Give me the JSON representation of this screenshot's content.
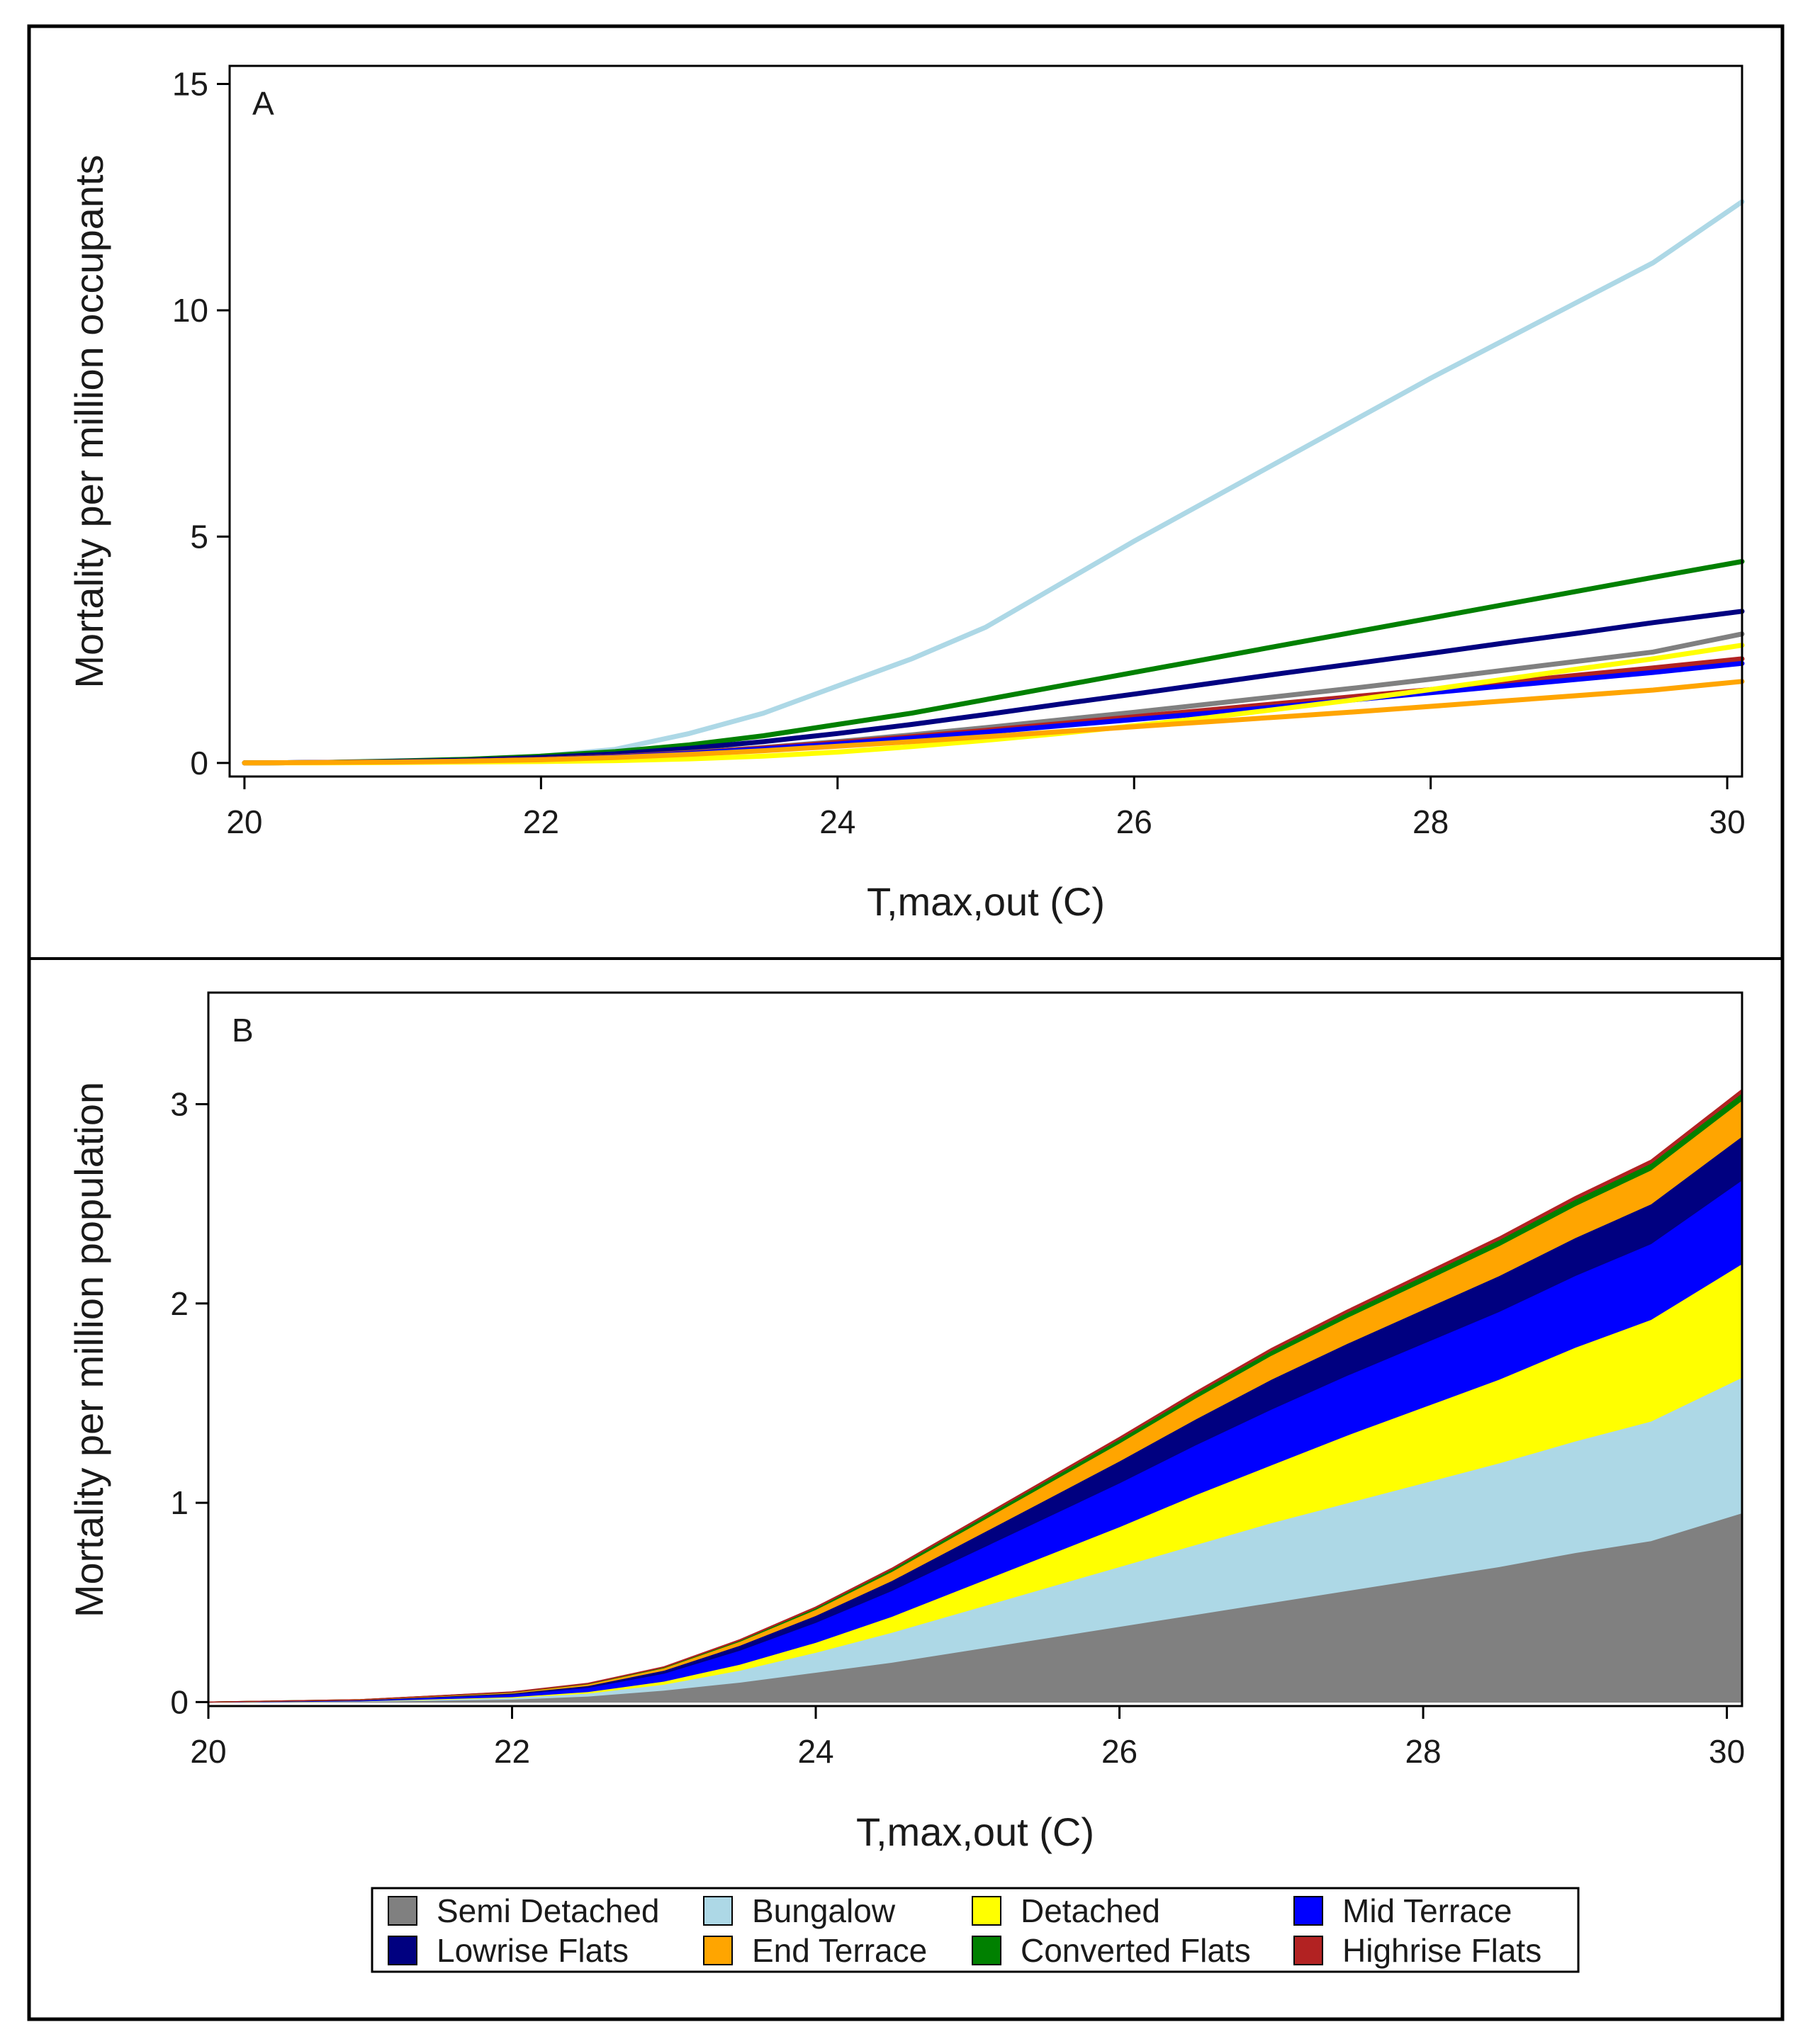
{
  "chart_data": [
    {
      "panel": "A",
      "type": "line",
      "title": "",
      "xlabel": "T,max,out (C)",
      "ylabel": "Mortality per million occupants",
      "xlim": [
        19.9,
        30.1
      ],
      "ylim": [
        -0.3,
        15.4
      ],
      "xticks": [
        20,
        22,
        24,
        26,
        28,
        30
      ],
      "yticks": [
        0,
        5,
        10,
        15
      ],
      "x": [
        20,
        20.5,
        21,
        21.5,
        22,
        22.5,
        23,
        23.5,
        24,
        24.5,
        25,
        25.5,
        26,
        26.5,
        27,
        27.5,
        28,
        28.5,
        29,
        29.5,
        30.1
      ],
      "series": [
        {
          "name": "Bungalow",
          "color": "#add8e6",
          "values": [
            0,
            0.01,
            0.03,
            0.08,
            0.15,
            0.3,
            0.65,
            1.1,
            1.7,
            2.3,
            3.0,
            3.95,
            4.9,
            5.8,
            6.7,
            7.6,
            8.5,
            9.35,
            10.2,
            11.05,
            12.4
          ]
        },
        {
          "name": "Converted Flats",
          "color": "#008000",
          "values": [
            0,
            0.01,
            0.04,
            0.08,
            0.15,
            0.25,
            0.4,
            0.6,
            0.85,
            1.1,
            1.4,
            1.7,
            2.0,
            2.3,
            2.6,
            2.9,
            3.2,
            3.5,
            3.8,
            4.1,
            4.45
          ]
        },
        {
          "name": "Lowrise Flats",
          "color": "#000080",
          "values": [
            0,
            0.01,
            0.03,
            0.06,
            0.12,
            0.2,
            0.32,
            0.47,
            0.65,
            0.85,
            1.07,
            1.3,
            1.52,
            1.75,
            1.98,
            2.2,
            2.42,
            2.65,
            2.87,
            3.1,
            3.35
          ]
        },
        {
          "name": "Semi Detached",
          "color": "#808080",
          "values": [
            0,
            0.01,
            0.02,
            0.04,
            0.08,
            0.14,
            0.23,
            0.34,
            0.47,
            0.62,
            0.78,
            0.95,
            1.12,
            1.3,
            1.48,
            1.66,
            1.85,
            2.05,
            2.25,
            2.45,
            2.85
          ]
        },
        {
          "name": "Highrise Flats",
          "color": "#b22222",
          "values": [
            0,
            0.01,
            0.02,
            0.04,
            0.08,
            0.14,
            0.22,
            0.33,
            0.45,
            0.58,
            0.72,
            0.87,
            1.02,
            1.17,
            1.32,
            1.47,
            1.62,
            1.78,
            1.94,
            2.1,
            2.3
          ]
        },
        {
          "name": "Mid Terrace",
          "color": "#0000ff",
          "values": [
            0,
            0.01,
            0.02,
            0.04,
            0.07,
            0.13,
            0.21,
            0.31,
            0.42,
            0.55,
            0.68,
            0.82,
            0.96,
            1.1,
            1.25,
            1.4,
            1.55,
            1.7,
            1.85,
            2.0,
            2.2
          ]
        },
        {
          "name": "Detached",
          "color": "#ffff00",
          "values": [
            0,
            0,
            0.01,
            0.02,
            0.03,
            0.05,
            0.09,
            0.15,
            0.24,
            0.36,
            0.5,
            0.65,
            0.82,
            1.0,
            1.2,
            1.4,
            1.62,
            1.85,
            2.08,
            2.3,
            2.6
          ]
        },
        {
          "name": "End Terrace",
          "color": "#ffa500",
          "values": [
            0,
            0.01,
            0.02,
            0.04,
            0.07,
            0.12,
            0.19,
            0.27,
            0.37,
            0.47,
            0.58,
            0.69,
            0.8,
            0.91,
            1.02,
            1.13,
            1.25,
            1.37,
            1.49,
            1.61,
            1.8
          ]
        }
      ]
    },
    {
      "panel": "B",
      "type": "area",
      "stacked": true,
      "title": "",
      "xlabel": "T,max,out (C)",
      "ylabel": "Mortality per million population",
      "xlim": [
        20,
        30.1
      ],
      "ylim": [
        -0.02,
        3.56
      ],
      "xticks": [
        20,
        22,
        24,
        26,
        28,
        30
      ],
      "yticks": [
        0,
        1,
        2,
        3
      ],
      "x": [
        20,
        21,
        22,
        22.5,
        23,
        23.5,
        24,
        24.5,
        25,
        25.5,
        26,
        26.5,
        27,
        27.5,
        28,
        28.5,
        29,
        29.5,
        30.1
      ],
      "series": [
        {
          "name": "Semi Detached",
          "color": "#808080",
          "values": [
            0,
            0.003,
            0.015,
            0.03,
            0.06,
            0.1,
            0.15,
            0.2,
            0.26,
            0.32,
            0.38,
            0.44,
            0.5,
            0.56,
            0.62,
            0.68,
            0.75,
            0.81,
            0.95
          ]
        },
        {
          "name": "Bungalow",
          "color": "#add8e6",
          "values": [
            0,
            0.002,
            0.008,
            0.015,
            0.03,
            0.06,
            0.1,
            0.15,
            0.2,
            0.25,
            0.3,
            0.35,
            0.4,
            0.44,
            0.48,
            0.52,
            0.56,
            0.6,
            0.68
          ]
        },
        {
          "name": "Detached",
          "color": "#ffff00",
          "values": [
            0,
            0.001,
            0.004,
            0.008,
            0.015,
            0.03,
            0.05,
            0.08,
            0.12,
            0.16,
            0.2,
            0.25,
            0.29,
            0.34,
            0.38,
            0.42,
            0.47,
            0.51,
            0.57
          ]
        },
        {
          "name": "Mid Terrace",
          "color": "#0000ff",
          "values": [
            0,
            0.003,
            0.012,
            0.02,
            0.04,
            0.07,
            0.1,
            0.13,
            0.16,
            0.19,
            0.22,
            0.25,
            0.28,
            0.3,
            0.32,
            0.34,
            0.36,
            0.38,
            0.42
          ]
        },
        {
          "name": "Lowrise Flats",
          "color": "#000080",
          "values": [
            0,
            0.002,
            0.006,
            0.01,
            0.015,
            0.025,
            0.035,
            0.05,
            0.07,
            0.09,
            0.11,
            0.13,
            0.15,
            0.16,
            0.17,
            0.18,
            0.19,
            0.2,
            0.22
          ]
        },
        {
          "name": "End Terrace",
          "color": "#ffa500",
          "values": [
            0,
            0.001,
            0.004,
            0.008,
            0.012,
            0.02,
            0.03,
            0.045,
            0.06,
            0.075,
            0.09,
            0.105,
            0.12,
            0.13,
            0.14,
            0.15,
            0.16,
            0.17,
            0.18
          ]
        },
        {
          "name": "Converted Flats",
          "color": "#008000",
          "values": [
            0,
            0,
            0.001,
            0.002,
            0.003,
            0.005,
            0.008,
            0.011,
            0.014,
            0.017,
            0.02,
            0.022,
            0.024,
            0.026,
            0.028,
            0.03,
            0.032,
            0.034,
            0.037
          ]
        },
        {
          "name": "Highrise Flats",
          "color": "#b22222",
          "values": [
            0,
            0,
            0.001,
            0.001,
            0.002,
            0.003,
            0.004,
            0.005,
            0.006,
            0.007,
            0.008,
            0.009,
            0.01,
            0.011,
            0.012,
            0.013,
            0.014,
            0.015,
            0.017
          ]
        }
      ]
    }
  ],
  "legend": [
    {
      "label": "Semi Detached",
      "color": "#808080"
    },
    {
      "label": "Bungalow",
      "color": "#add8e6"
    },
    {
      "label": "Detached",
      "color": "#ffff00"
    },
    {
      "label": "Mid Terrace",
      "color": "#0000ff"
    },
    {
      "label": "Lowrise Flats",
      "color": "#000080"
    },
    {
      "label": "End Terrace",
      "color": "#ffa500"
    },
    {
      "label": "Converted Flats",
      "color": "#008000"
    },
    {
      "label": "Highrise Flats",
      "color": "#b22222"
    }
  ]
}
